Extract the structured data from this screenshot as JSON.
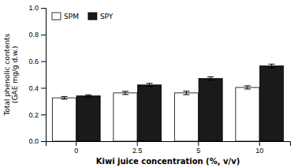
{
  "chart_data": {
    "type": "bar",
    "categories": [
      "0",
      "2.5",
      "5",
      "10"
    ],
    "series": [
      {
        "name": "SPM",
        "color": "#ffffff",
        "values": [
          0.325,
          0.362,
          0.362,
          0.403
        ],
        "errors": [
          0.01,
          0.012,
          0.013,
          0.012
        ]
      },
      {
        "name": "SPY",
        "color": "#1a1a1a",
        "values": [
          0.34,
          0.422,
          0.47,
          0.565
        ],
        "errors": [
          0.008,
          0.012,
          0.012,
          0.013
        ]
      }
    ],
    "xlabel": "Kiwi juice concentration (%, v/v)",
    "ylabel": "Total phenolic contents\n(GAE mg/g d.w.)",
    "ylim": [
      0.0,
      1.0
    ],
    "yticks": [
      {
        "value": 0.0,
        "label": "0.0"
      },
      0.2,
      0.4,
      0.6,
      0.8,
      {
        "value": 1.0,
        "label": "1.0"
      }
    ],
    "grid": false,
    "legend": "upper left"
  }
}
